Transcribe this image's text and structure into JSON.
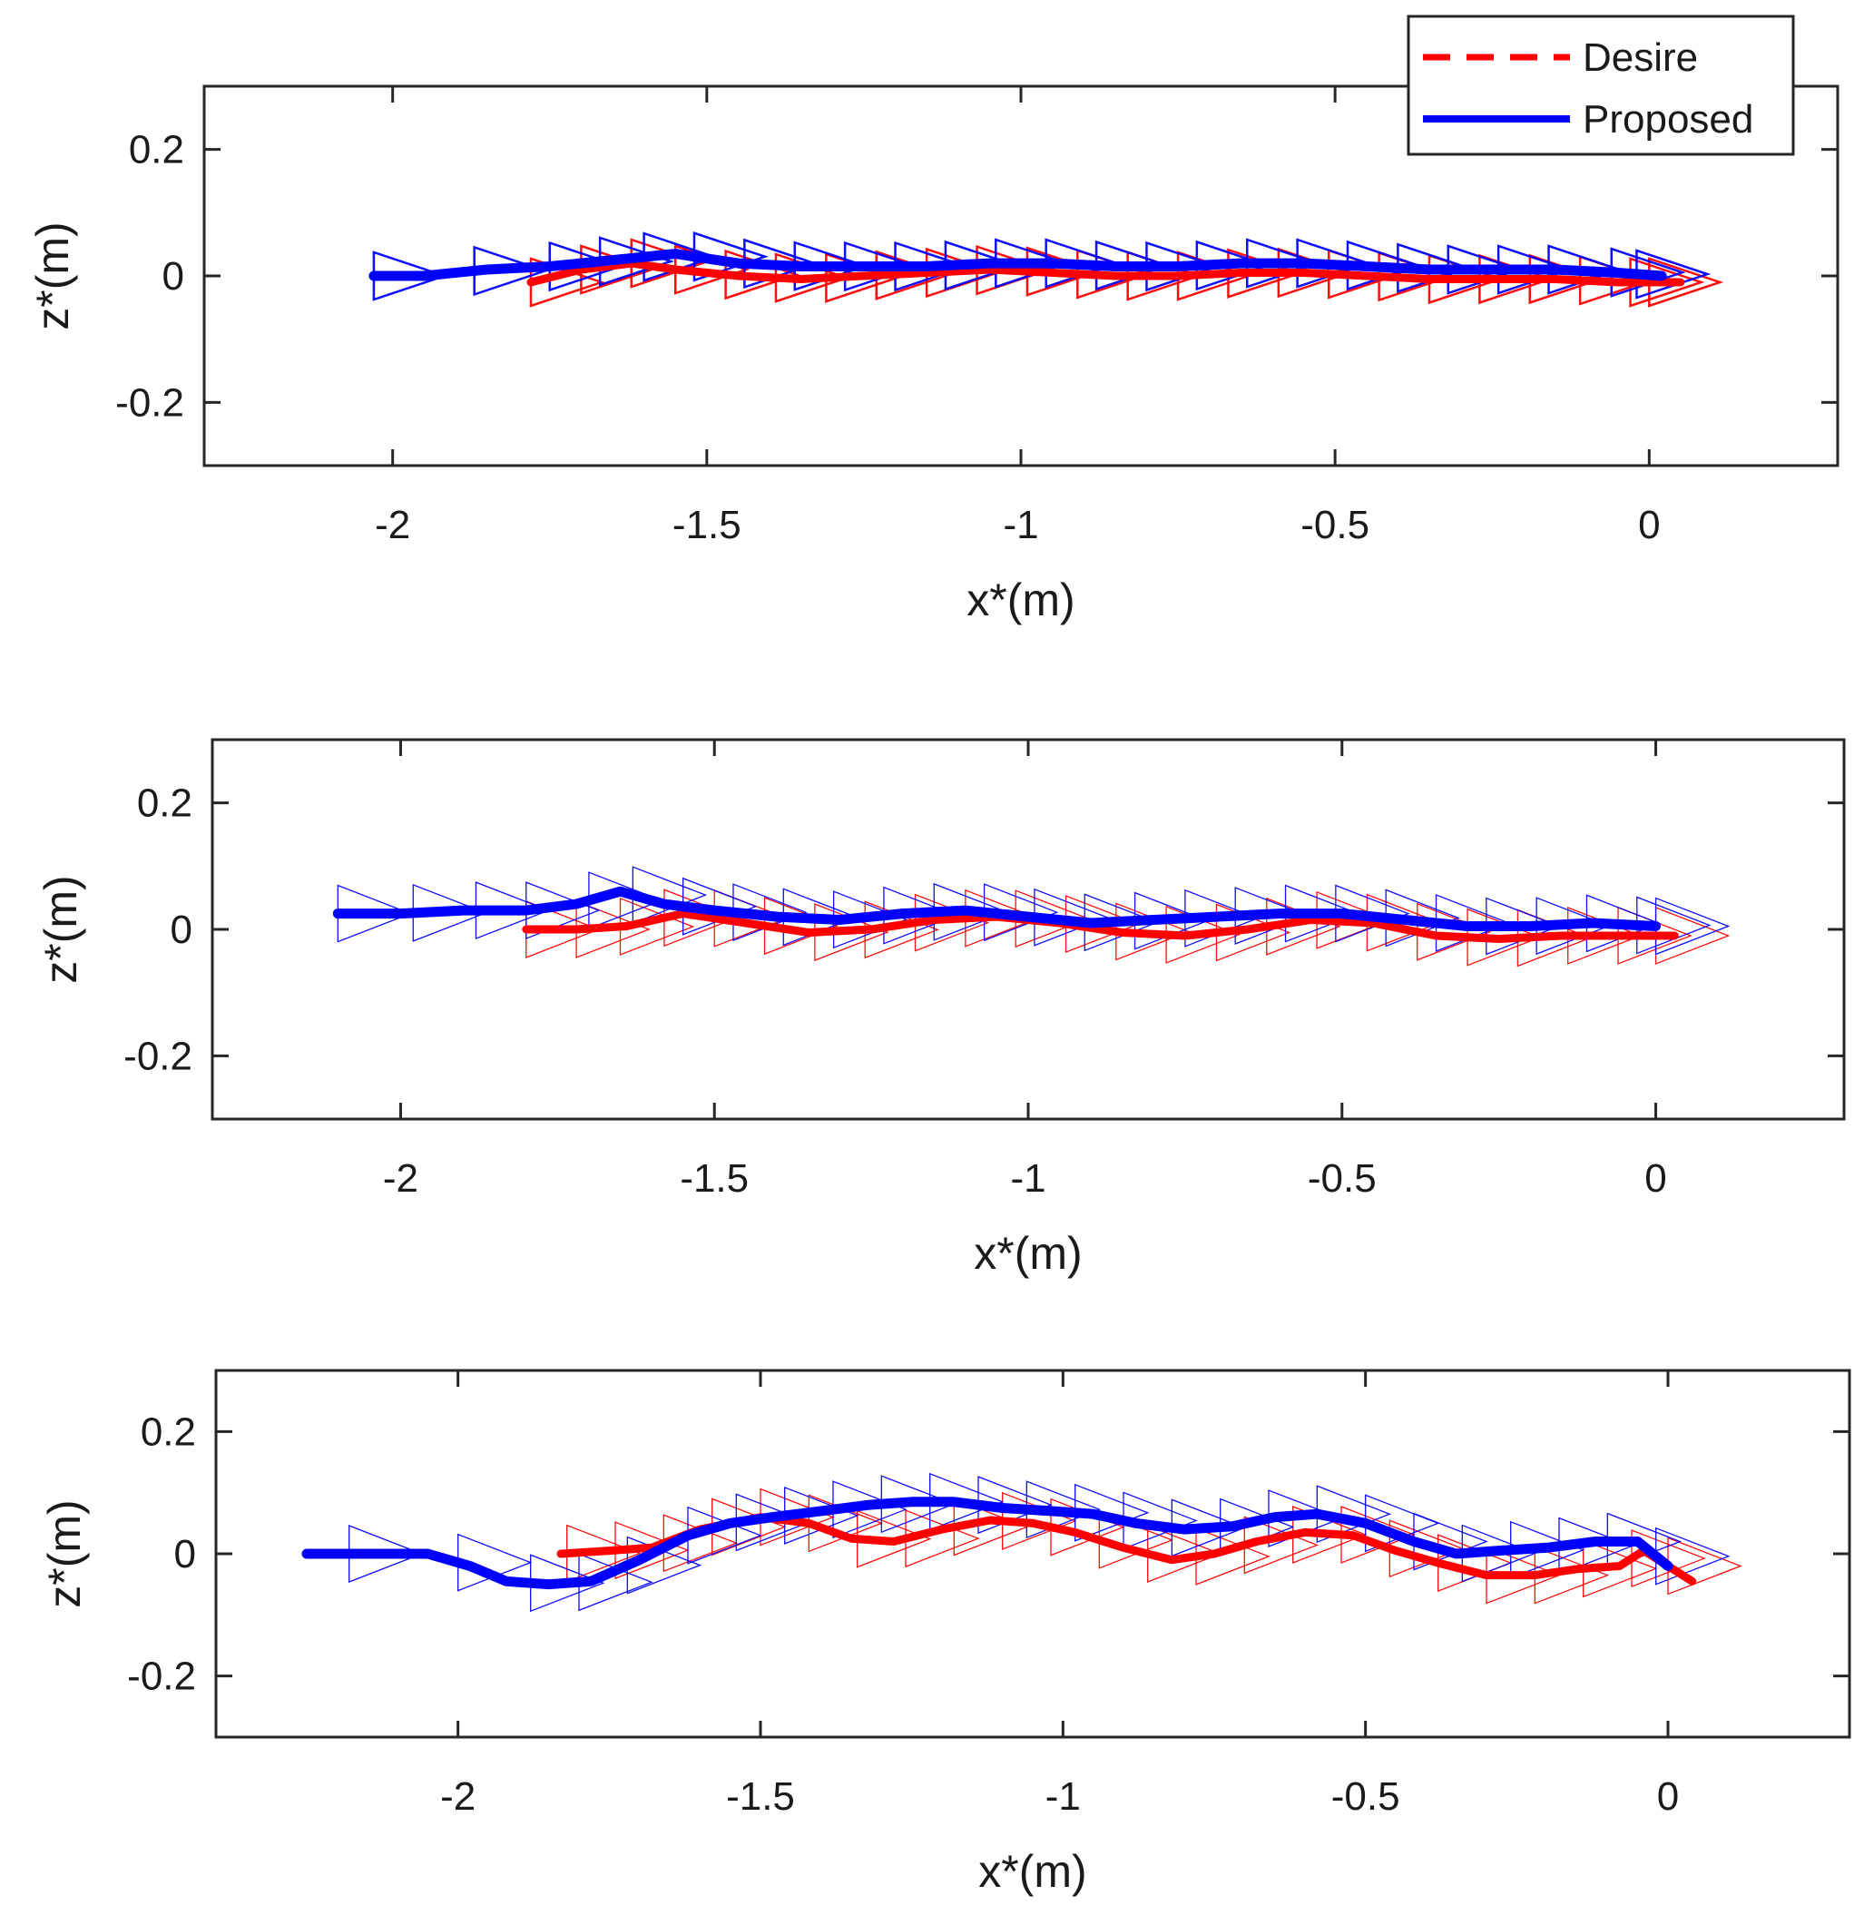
{
  "chart_data": [
    {
      "type": "line",
      "panel": "top",
      "title": "",
      "xlabel": "x*(m)",
      "ylabel": "z*(m)",
      "xlim": [
        -2.3,
        0.3
      ],
      "ylim": [
        -0.3,
        0.3
      ],
      "xticks": [
        -2,
        -1.5,
        -1,
        -0.5,
        0
      ],
      "xtick_labels": [
        "-2",
        "-1.5",
        "-1",
        "-0.5",
        "0"
      ],
      "yticks": [
        0.2,
        0,
        -0.2
      ],
      "ytick_labels": [
        "0.2",
        "0",
        "-0.2"
      ],
      "legend": {
        "position": "top-right",
        "entries": [
          {
            "label": "Desire",
            "color": "#ff0000",
            "style": "dashed"
          },
          {
            "label": "Proposed",
            "color": "#0000ff",
            "style": "solid"
          }
        ]
      },
      "series": [
        {
          "name": "Desire",
          "color": "#ff0000",
          "x": [
            -1.78,
            -1.7,
            -1.62,
            -1.55,
            -1.45,
            -1.35,
            -1.25,
            -1.15,
            -1.05,
            -0.95,
            -0.85,
            -0.75,
            -0.65,
            -0.55,
            -0.45,
            -0.35,
            -0.25,
            -0.15,
            -0.05,
            0.05
          ],
          "y": [
            -0.01,
            0.01,
            0.02,
            0.01,
            0.0,
            -0.005,
            0.0,
            0.005,
            0.01,
            0.005,
            0.0,
            0.0,
            0.005,
            0.005,
            0.0,
            -0.005,
            -0.005,
            -0.005,
            -0.01,
            -0.01
          ]
        },
        {
          "name": "Proposed",
          "color": "#0000ff",
          "x": [
            -2.03,
            -1.95,
            -1.85,
            -1.75,
            -1.65,
            -1.55,
            -1.45,
            -1.35,
            -1.25,
            -1.15,
            -1.05,
            -0.95,
            -0.85,
            -0.75,
            -0.65,
            -0.55,
            -0.45,
            -0.35,
            -0.25,
            -0.15,
            -0.05,
            0.02
          ],
          "y": [
            0.0,
            0.0,
            0.01,
            0.015,
            0.025,
            0.035,
            0.02,
            0.015,
            0.015,
            0.015,
            0.02,
            0.02,
            0.015,
            0.015,
            0.02,
            0.02,
            0.015,
            0.01,
            0.01,
            0.01,
            0.005,
            0.0
          ]
        }
      ],
      "desire_triangles_x": [
        -1.78,
        -1.7,
        -1.62,
        -1.55,
        -1.47,
        -1.39,
        -1.31,
        -1.23,
        -1.15,
        -1.07,
        -0.99,
        -0.91,
        -0.83,
        -0.75,
        -0.67,
        -0.59,
        -0.51,
        -0.43,
        -0.35,
        -0.27,
        -0.19,
        -0.11,
        -0.03,
        0.0
      ],
      "proposed_triangles_x": [
        -2.03,
        -1.87,
        -1.75,
        -1.67,
        -1.6,
        -1.52,
        -1.44,
        -1.36,
        -1.28,
        -1.2,
        -1.12,
        -1.04,
        -0.96,
        -0.88,
        -0.8,
        -0.72,
        -0.64,
        -0.56,
        -0.48,
        -0.4,
        -0.32,
        -0.24,
        -0.16,
        -0.06,
        -0.02
      ]
    },
    {
      "type": "line",
      "panel": "middle",
      "title": "",
      "xlabel": "x*(m)",
      "ylabel": "z*(m)",
      "xlim": [
        -2.3,
        0.3
      ],
      "ylim": [
        -0.3,
        0.3
      ],
      "xticks": [
        -2,
        -1.5,
        -1,
        -0.5,
        0
      ],
      "xtick_labels": [
        "-2",
        "-1.5",
        "-1",
        "-0.5",
        "0"
      ],
      "yticks": [
        0.2,
        0,
        -0.2
      ],
      "ytick_labels": [
        "0.2",
        "0",
        "-0.2"
      ],
      "series": [
        {
          "name": "Desire",
          "color": "#ff0000",
          "x": [
            -1.8,
            -1.72,
            -1.64,
            -1.55,
            -1.45,
            -1.35,
            -1.25,
            -1.15,
            -1.05,
            -0.95,
            -0.85,
            -0.75,
            -0.65,
            -0.55,
            -0.45,
            -0.35,
            -0.25,
            -0.15,
            -0.05,
            0.03
          ],
          "y": [
            0.0,
            0.0,
            0.005,
            0.025,
            0.01,
            -0.005,
            0.0,
            0.015,
            0.02,
            0.01,
            -0.005,
            -0.01,
            0.0,
            0.015,
            0.01,
            -0.01,
            -0.015,
            -0.01,
            -0.01,
            -0.01
          ]
        },
        {
          "name": "Proposed",
          "color": "#0000ff",
          "x": [
            -2.1,
            -2.0,
            -1.9,
            -1.8,
            -1.72,
            -1.65,
            -1.58,
            -1.5,
            -1.4,
            -1.3,
            -1.2,
            -1.1,
            -1.0,
            -0.9,
            -0.8,
            -0.7,
            -0.6,
            -0.5,
            -0.4,
            -0.3,
            -0.2,
            -0.1,
            0.0
          ],
          "y": [
            0.025,
            0.025,
            0.03,
            0.03,
            0.04,
            0.06,
            0.04,
            0.03,
            0.02,
            0.015,
            0.025,
            0.03,
            0.02,
            0.01,
            0.015,
            0.02,
            0.025,
            0.025,
            0.015,
            0.005,
            0.005,
            0.01,
            0.005
          ]
        }
      ],
      "desire_triangles_x": [
        -1.8,
        -1.72,
        -1.65,
        -1.58,
        -1.5,
        -1.42,
        -1.34,
        -1.26,
        -1.18,
        -1.1,
        -1.02,
        -0.94,
        -0.86,
        -0.78,
        -0.7,
        -0.62,
        -0.54,
        -0.46,
        -0.38,
        -0.3,
        -0.22,
        -0.14,
        -0.06,
        0.0
      ],
      "proposed_triangles_x": [
        -2.1,
        -1.98,
        -1.88,
        -1.8,
        -1.7,
        -1.63,
        -1.55,
        -1.47,
        -1.39,
        -1.31,
        -1.23,
        -1.15,
        -1.07,
        -0.99,
        -0.91,
        -0.83,
        -0.75,
        -0.67,
        -0.59,
        -0.51,
        -0.43,
        -0.35,
        -0.27,
        -0.19,
        -0.11,
        -0.03,
        0.0
      ]
    },
    {
      "type": "line",
      "panel": "bottom",
      "title": "",
      "xlabel": "x*(m)",
      "ylabel": "z*(m)",
      "xlim": [
        -2.4,
        0.3
      ],
      "ylim": [
        -0.3,
        0.3
      ],
      "xticks": [
        -2,
        -1.5,
        -1,
        -0.5,
        0
      ],
      "xtick_labels": [
        "-2",
        "-1.5",
        "-1",
        "-0.5",
        "0"
      ],
      "yticks": [
        0.2,
        0,
        -0.2
      ],
      "ytick_labels": [
        "0.2",
        "0",
        "-0.2"
      ],
      "series": [
        {
          "name": "Desire",
          "color": "#ff0000",
          "x": [
            -1.83,
            -1.75,
            -1.68,
            -1.6,
            -1.5,
            -1.42,
            -1.35,
            -1.28,
            -1.2,
            -1.12,
            -1.05,
            -0.98,
            -0.9,
            -0.82,
            -0.75,
            -0.68,
            -0.6,
            -0.52,
            -0.45,
            -0.38,
            -0.3,
            -0.22,
            -0.15,
            -0.08,
            -0.04,
            0.04
          ],
          "y": [
            0.0,
            0.005,
            0.01,
            0.04,
            0.06,
            0.05,
            0.025,
            0.02,
            0.04,
            0.055,
            0.05,
            0.035,
            0.01,
            -0.01,
            0.0,
            0.02,
            0.035,
            0.03,
            0.005,
            -0.015,
            -0.035,
            -0.035,
            -0.025,
            -0.02,
            0.005,
            -0.045
          ]
        },
        {
          "name": "Proposed",
          "color": "#0000ff",
          "x": [
            -2.25,
            -2.15,
            -2.05,
            -1.98,
            -1.92,
            -1.85,
            -1.78,
            -1.7,
            -1.62,
            -1.55,
            -1.48,
            -1.4,
            -1.32,
            -1.25,
            -1.18,
            -1.1,
            -1.02,
            -0.95,
            -0.88,
            -0.8,
            -0.72,
            -0.65,
            -0.58,
            -0.5,
            -0.42,
            -0.35,
            -0.28,
            -0.2,
            -0.12,
            -0.05,
            0.0
          ],
          "y": [
            0.0,
            0.0,
            0.0,
            -0.02,
            -0.045,
            -0.05,
            -0.045,
            -0.01,
            0.03,
            0.05,
            0.06,
            0.07,
            0.08,
            0.085,
            0.085,
            0.075,
            0.07,
            0.065,
            0.05,
            0.04,
            0.045,
            0.06,
            0.065,
            0.05,
            0.02,
            0.0,
            0.005,
            0.01,
            0.02,
            0.02,
            -0.02
          ]
        }
      ],
      "desire_triangles_x": [
        -1.82,
        -1.74,
        -1.66,
        -1.58,
        -1.5,
        -1.42,
        -1.34,
        -1.26,
        -1.18,
        -1.1,
        -1.02,
        -0.94,
        -0.86,
        -0.78,
        -0.7,
        -0.62,
        -0.54,
        -0.46,
        -0.38,
        -0.3,
        -0.22,
        -0.14,
        -0.06,
        0.0
      ],
      "proposed_triangles_x": [
        -2.18,
        -2.0,
        -1.88,
        -1.8,
        -1.72,
        -1.62,
        -1.54,
        -1.46,
        -1.38,
        -1.3,
        -1.22,
        -1.14,
        -1.06,
        -0.98,
        -0.9,
        -0.82,
        -0.74,
        -0.66,
        -0.58,
        -0.5,
        -0.42,
        -0.34,
        -0.26,
        -0.18,
        -0.1,
        -0.02
      ]
    }
  ]
}
